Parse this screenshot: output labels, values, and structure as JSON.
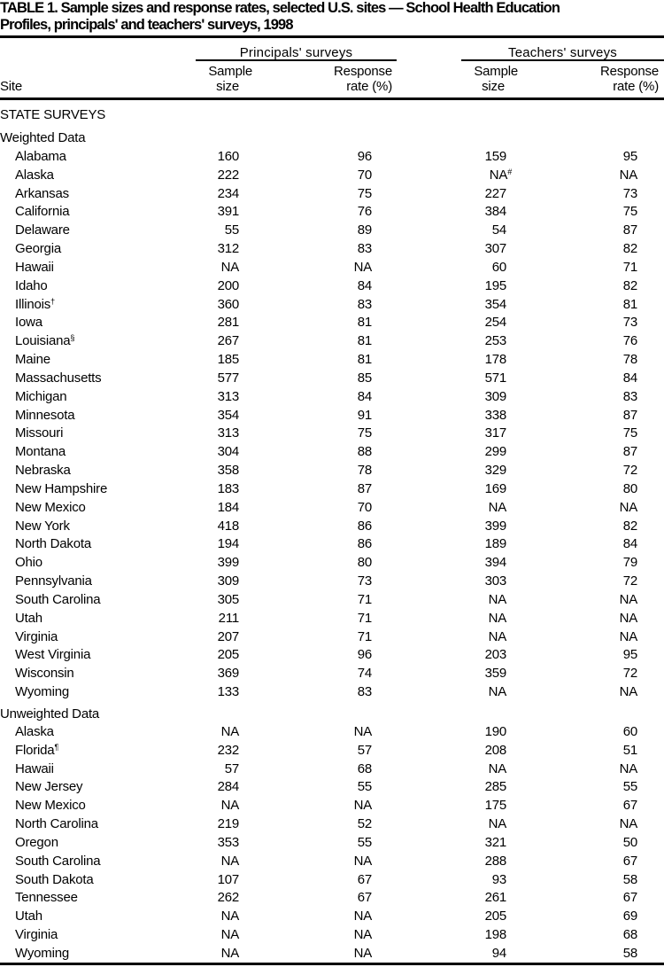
{
  "title": {
    "line1": "TABLE 1. Sample sizes and response rates, selected U.S. sites — School Health Education",
    "line2": "Profiles, principals' and teachers' surveys, 1998"
  },
  "header": {
    "site": "Site",
    "groups": [
      "Principals' surveys",
      "Teachers' surveys"
    ],
    "sample_line1": "Sample",
    "sample_line2": "size",
    "response_line1": "Response",
    "response_line2": "rate (%)"
  },
  "sections": {
    "state_surveys": "STATE SURVEYS",
    "weighted": "Weighted Data",
    "unweighted": "Unweighted Data"
  },
  "weighted_rows": [
    {
      "site": "Alabama",
      "sup": "",
      "p_size": "160",
      "p_rate": "96",
      "t_size": "159",
      "t_sup": "",
      "t_rate": "95"
    },
    {
      "site": "Alaska",
      "sup": "",
      "p_size": "222",
      "p_rate": "70",
      "t_size": "NA",
      "t_sup": "#",
      "t_rate": "NA"
    },
    {
      "site": "Arkansas",
      "sup": "",
      "p_size": "234",
      "p_rate": "75",
      "t_size": "227",
      "t_sup": "",
      "t_rate": "73"
    },
    {
      "site": "California",
      "sup": "",
      "p_size": "391",
      "p_rate": "76",
      "t_size": "384",
      "t_sup": "",
      "t_rate": "75"
    },
    {
      "site": "Delaware",
      "sup": "",
      "p_size": "55",
      "p_rate": "89",
      "t_size": "54",
      "t_sup": "",
      "t_rate": "87"
    },
    {
      "site": "Georgia",
      "sup": "",
      "p_size": "312",
      "p_rate": "83",
      "t_size": "307",
      "t_sup": "",
      "t_rate": "82"
    },
    {
      "site": "Hawaii",
      "sup": "",
      "p_size": "NA",
      "p_rate": "NA",
      "t_size": "60",
      "t_sup": "",
      "t_rate": "71"
    },
    {
      "site": "Idaho",
      "sup": "",
      "p_size": "200",
      "p_rate": "84",
      "t_size": "195",
      "t_sup": "",
      "t_rate": "82"
    },
    {
      "site": "Illinois",
      "sup": "†",
      "p_size": "360",
      "p_rate": "83",
      "t_size": "354",
      "t_sup": "",
      "t_rate": "81"
    },
    {
      "site": "Iowa",
      "sup": "",
      "p_size": "281",
      "p_rate": "81",
      "t_size": "254",
      "t_sup": "",
      "t_rate": "73"
    },
    {
      "site": "Louisiana",
      "sup": "§",
      "p_size": "267",
      "p_rate": "81",
      "t_size": "253",
      "t_sup": "",
      "t_rate": "76"
    },
    {
      "site": "Maine",
      "sup": "",
      "p_size": "185",
      "p_rate": "81",
      "t_size": "178",
      "t_sup": "",
      "t_rate": "78"
    },
    {
      "site": "Massachusetts",
      "sup": "",
      "p_size": "577",
      "p_rate": "85",
      "t_size": "571",
      "t_sup": "",
      "t_rate": "84"
    },
    {
      "site": "Michigan",
      "sup": "",
      "p_size": "313",
      "p_rate": "84",
      "t_size": "309",
      "t_sup": "",
      "t_rate": "83"
    },
    {
      "site": "Minnesota",
      "sup": "",
      "p_size": "354",
      "p_rate": "91",
      "t_size": "338",
      "t_sup": "",
      "t_rate": "87"
    },
    {
      "site": "Missouri",
      "sup": "",
      "p_size": "313",
      "p_rate": "75",
      "t_size": "317",
      "t_sup": "",
      "t_rate": "75"
    },
    {
      "site": "Montana",
      "sup": "",
      "p_size": "304",
      "p_rate": "88",
      "t_size": "299",
      "t_sup": "",
      "t_rate": "87"
    },
    {
      "site": "Nebraska",
      "sup": "",
      "p_size": "358",
      "p_rate": "78",
      "t_size": "329",
      "t_sup": "",
      "t_rate": "72"
    },
    {
      "site": "New Hampshire",
      "sup": "",
      "p_size": "183",
      "p_rate": "87",
      "t_size": "169",
      "t_sup": "",
      "t_rate": "80"
    },
    {
      "site": "New Mexico",
      "sup": "",
      "p_size": "184",
      "p_rate": "70",
      "t_size": "NA",
      "t_sup": "",
      "t_rate": "NA"
    },
    {
      "site": "New York",
      "sup": "",
      "p_size": "418",
      "p_rate": "86",
      "t_size": "399",
      "t_sup": "",
      "t_rate": "82"
    },
    {
      "site": "North Dakota",
      "sup": "",
      "p_size": "194",
      "p_rate": "86",
      "t_size": "189",
      "t_sup": "",
      "t_rate": "84"
    },
    {
      "site": "Ohio",
      "sup": "",
      "p_size": "399",
      "p_rate": "80",
      "t_size": "394",
      "t_sup": "",
      "t_rate": "79"
    },
    {
      "site": "Pennsylvania",
      "sup": "",
      "p_size": "309",
      "p_rate": "73",
      "t_size": "303",
      "t_sup": "",
      "t_rate": "72"
    },
    {
      "site": "South Carolina",
      "sup": "",
      "p_size": "305",
      "p_rate": "71",
      "t_size": "NA",
      "t_sup": "",
      "t_rate": "NA"
    },
    {
      "site": "Utah",
      "sup": "",
      "p_size": "211",
      "p_rate": "71",
      "t_size": "NA",
      "t_sup": "",
      "t_rate": "NA"
    },
    {
      "site": "Virginia",
      "sup": "",
      "p_size": "207",
      "p_rate": "71",
      "t_size": "NA",
      "t_sup": "",
      "t_rate": "NA"
    },
    {
      "site": "West Virginia",
      "sup": "",
      "p_size": "205",
      "p_rate": "96",
      "t_size": "203",
      "t_sup": "",
      "t_rate": "95"
    },
    {
      "site": "Wisconsin",
      "sup": "",
      "p_size": "369",
      "p_rate": "74",
      "t_size": "359",
      "t_sup": "",
      "t_rate": "72"
    },
    {
      "site": "Wyoming",
      "sup": "",
      "p_size": "133",
      "p_rate": "83",
      "t_size": "NA",
      "t_sup": "",
      "t_rate": "NA"
    }
  ],
  "unweighted_rows": [
    {
      "site": "Alaska",
      "sup": "",
      "p_size": "NA",
      "p_rate": "NA",
      "t_size": "190",
      "t_sup": "",
      "t_rate": "60"
    },
    {
      "site": "Florida",
      "sup": "¶",
      "p_size": "232",
      "p_rate": "57",
      "t_size": "208",
      "t_sup": "",
      "t_rate": "51"
    },
    {
      "site": "Hawaii",
      "sup": "",
      "p_size": "57",
      "p_rate": "68",
      "t_size": "NA",
      "t_sup": "",
      "t_rate": "NA"
    },
    {
      "site": "New Jersey",
      "sup": "",
      "p_size": "284",
      "p_rate": "55",
      "t_size": "285",
      "t_sup": "",
      "t_rate": "55"
    },
    {
      "site": "New Mexico",
      "sup": "",
      "p_size": "NA",
      "p_rate": "NA",
      "t_size": "175",
      "t_sup": "",
      "t_rate": "67"
    },
    {
      "site": "North Carolina",
      "sup": "",
      "p_size": "219",
      "p_rate": "52",
      "t_size": "NA",
      "t_sup": "",
      "t_rate": "NA"
    },
    {
      "site": "Oregon",
      "sup": "",
      "p_size": "353",
      "p_rate": "55",
      "t_size": "321",
      "t_sup": "",
      "t_rate": "50"
    },
    {
      "site": "South Carolina",
      "sup": "",
      "p_size": "NA",
      "p_rate": "NA",
      "t_size": "288",
      "t_sup": "",
      "t_rate": "67"
    },
    {
      "site": "South Dakota",
      "sup": "",
      "p_size": "107",
      "p_rate": "67",
      "t_size": "93",
      "t_sup": "",
      "t_rate": "58"
    },
    {
      "site": "Tennessee",
      "sup": "",
      "p_size": "262",
      "p_rate": "67",
      "t_size": "261",
      "t_sup": "",
      "t_rate": "67"
    },
    {
      "site": "Utah",
      "sup": "",
      "p_size": "NA",
      "p_rate": "NA",
      "t_size": "205",
      "t_sup": "",
      "t_rate": "69"
    },
    {
      "site": "Virginia",
      "sup": "",
      "p_size": "NA",
      "p_rate": "NA",
      "t_size": "198",
      "t_sup": "",
      "t_rate": "68"
    },
    {
      "site": "Wyoming",
      "sup": "",
      "p_size": "NA",
      "p_rate": "NA",
      "t_size": "94",
      "t_sup": "",
      "t_rate": "58"
    }
  ]
}
